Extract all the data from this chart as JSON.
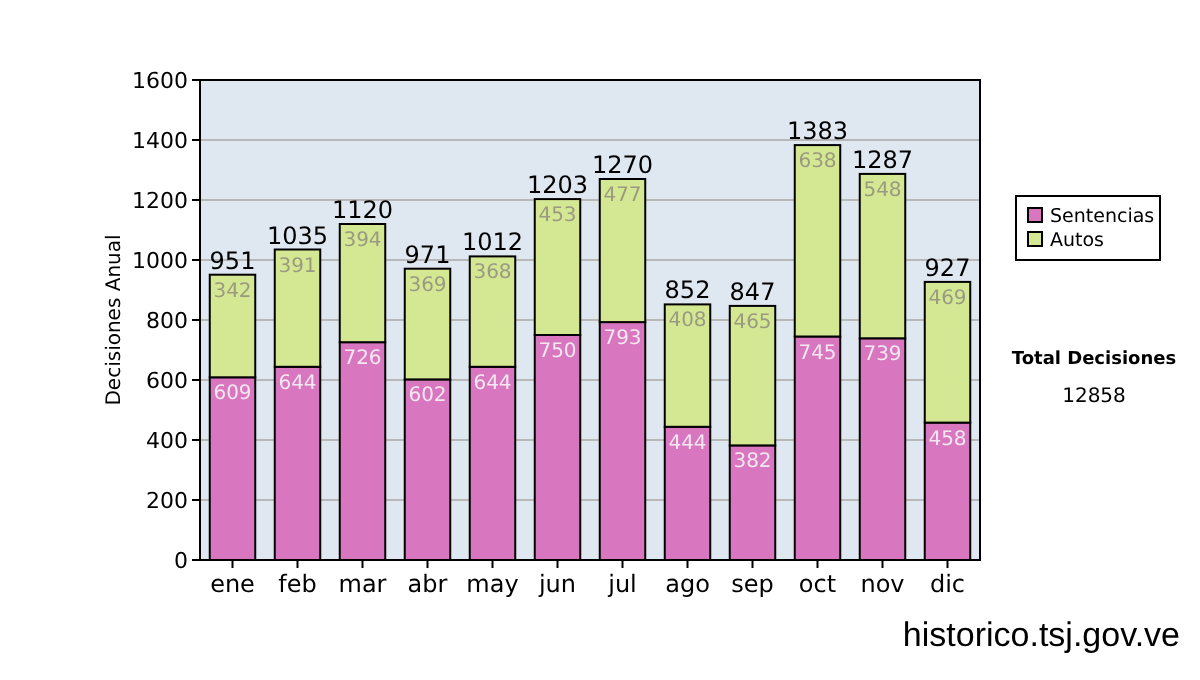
{
  "chart_data": {
    "type": "bar",
    "stacked": true,
    "ylabel": "Decisiones Anual",
    "categories": [
      "ene",
      "feb",
      "mar",
      "abr",
      "may",
      "jun",
      "jul",
      "ago",
      "sep",
      "oct",
      "nov",
      "dic"
    ],
    "series": [
      {
        "name": "Sentencias",
        "color": "#d877bf",
        "values": [
          609,
          644,
          726,
          602,
          644,
          750,
          793,
          444,
          382,
          745,
          739,
          458
        ]
      },
      {
        "name": "Autos",
        "color": "#d4e894",
        "values": [
          342,
          391,
          394,
          369,
          368,
          453,
          477,
          408,
          465,
          638,
          548,
          469
        ]
      }
    ],
    "ylim": [
      0,
      1600
    ],
    "yticks": [
      0,
      200,
      400,
      600,
      800,
      1000,
      1200,
      1400,
      1600
    ],
    "grid": "y",
    "legend": "right",
    "data_labels": true,
    "totals": [
      "951",
      "1035",
      "1120",
      "971",
      "1012",
      "1203",
      "1270",
      "852",
      "847",
      "1383",
      "1287",
      "927"
    ],
    "annotations": [
      "Total Decisiones",
      "12858",
      "historico.tsj.gov.ve"
    ]
  }
}
